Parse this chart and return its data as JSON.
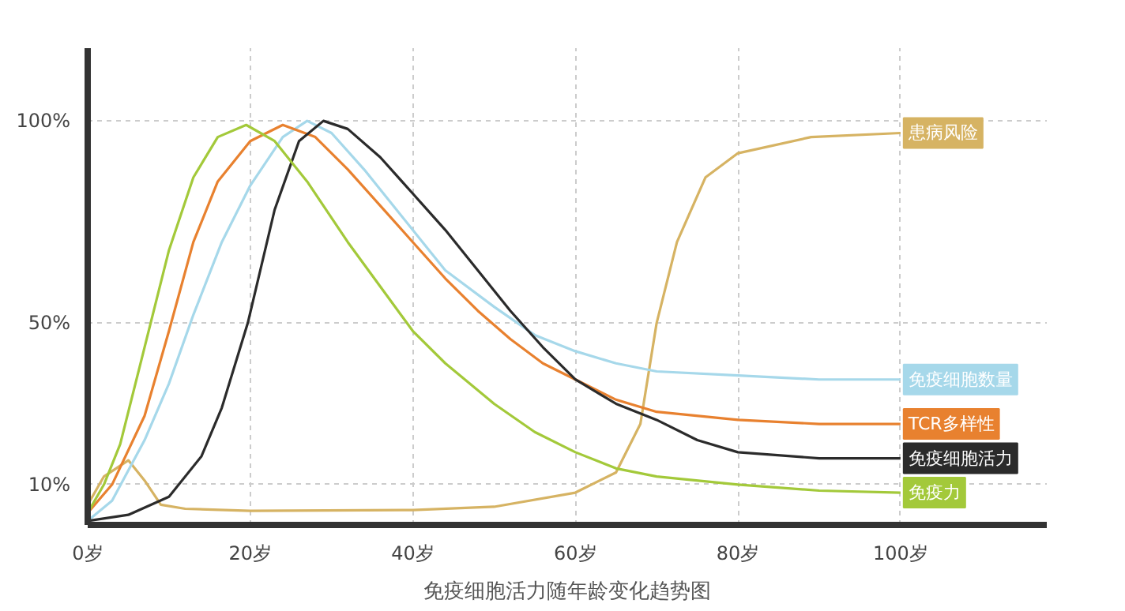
{
  "chart_data": {
    "type": "line",
    "title": "免疫细胞活力随年龄变化趋势图",
    "xlim": [
      0,
      118
    ],
    "ylim": [
      0,
      118
    ],
    "xticks": [
      {
        "value": 0,
        "label": "0岁"
      },
      {
        "value": 20,
        "label": "20岁"
      },
      {
        "value": 40,
        "label": "40岁"
      },
      {
        "value": 60,
        "label": "60岁"
      },
      {
        "value": 80,
        "label": "80岁"
      },
      {
        "value": 100,
        "label": "100岁"
      }
    ],
    "yticks": [
      {
        "value": 10,
        "label": "10%"
      },
      {
        "value": 50,
        "label": "50%"
      },
      {
        "value": 100,
        "label": "100%"
      }
    ],
    "grid": true,
    "line_style": "solid",
    "marker": "none",
    "series": [
      {
        "name": "患病风险",
        "color": "#d6b363",
        "x": [
          0,
          2,
          5,
          7,
          9,
          12,
          20,
          40,
          50,
          60,
          65,
          68,
          70,
          72.5,
          76,
          80,
          89,
          100
        ],
        "values": [
          5,
          12,
          16,
          11,
          5,
          4,
          3.5,
          3.7,
          4.5,
          8,
          13,
          25,
          50,
          70,
          86,
          92,
          96,
          97
        ]
      },
      {
        "name": "免疫细胞数量",
        "color": "#a6d8ea",
        "x": [
          0,
          3,
          7,
          10,
          13,
          16.5,
          20,
          24,
          27,
          30,
          34,
          38,
          42,
          44,
          50,
          55,
          60,
          65,
          70,
          80,
          90,
          100
        ],
        "values": [
          1,
          6,
          21,
          35,
          52,
          70,
          84,
          96,
          100,
          97,
          88,
          78,
          68,
          63,
          54,
          47,
          43,
          40,
          38,
          37,
          36,
          36
        ]
      },
      {
        "name": "TCR多样性",
        "color": "#e8812f",
        "x": [
          0,
          3,
          7,
          10,
          13,
          16,
          20,
          24,
          28,
          32,
          36,
          40,
          44,
          48,
          52,
          56,
          60,
          65,
          70,
          80,
          90,
          100
        ],
        "values": [
          3,
          10,
          27,
          48,
          70,
          85,
          95,
          99,
          96,
          88,
          79,
          70,
          61,
          53,
          46,
          40,
          36,
          31,
          28,
          26,
          25,
          25
        ]
      },
      {
        "name": "免疫细胞活力",
        "color": "#2b2b2b",
        "x": [
          0,
          5,
          10,
          14,
          16.5,
          19.7,
          23,
          26,
          29,
          32,
          36,
          40,
          44,
          48,
          52,
          56,
          60,
          65,
          70,
          75,
          80,
          90,
          100
        ],
        "values": [
          1,
          2.5,
          7,
          17,
          29,
          50,
          78,
          95,
          100,
          98,
          91,
          82,
          73,
          63,
          53,
          44,
          36,
          30,
          26,
          21,
          18,
          16.5,
          16.5
        ]
      },
      {
        "name": "免疫力",
        "color": "#a3c93a",
        "x": [
          0,
          2,
          4,
          7,
          10,
          13,
          16,
          19.5,
          23,
          27,
          32,
          36,
          40,
          44,
          50,
          55,
          60,
          65,
          70,
          80,
          90,
          100
        ],
        "values": [
          3,
          10,
          20,
          44,
          68,
          86,
          96,
          99,
          95,
          85,
          70,
          59,
          48,
          40,
          30,
          23,
          18,
          14,
          12,
          10,
          8.5,
          8
        ]
      }
    ]
  }
}
